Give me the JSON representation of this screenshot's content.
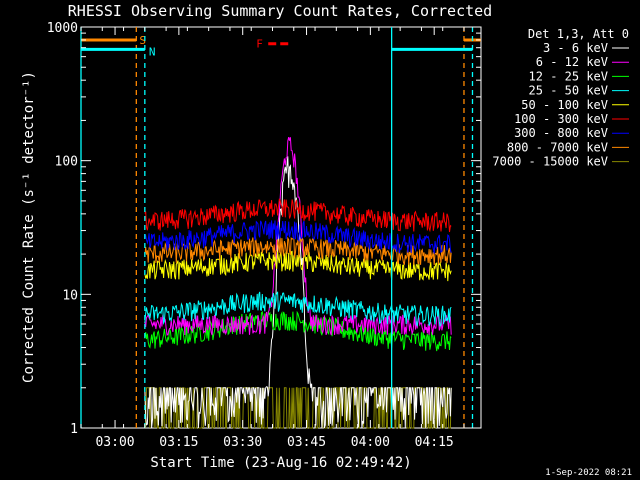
{
  "chart_data": {
    "type": "line",
    "title": "RHESSI Observing Summary Count Rates, Corrected",
    "xlabel": "Start Time (23-Aug-16 02:49:42)",
    "ylabel": "Corrected Count Rate (s⁻¹ detector⁻¹)",
    "y_scale": "log",
    "ylim": [
      1,
      1000
    ],
    "xlim": [
      "02:52",
      "04:26"
    ],
    "x_ticks": [
      "03:00",
      "03:15",
      "03:30",
      "03:45",
      "04:00",
      "04:15"
    ],
    "y_ticks": [
      "1",
      "10",
      "100",
      "1000"
    ],
    "legend_title": "Det 1,3, Att 0",
    "legend_position": "right",
    "timestamp": "1-Sep-2022 08:21",
    "series": [
      {
        "name": "3 - 6 keV",
        "color": "#ffffff",
        "start": "03:07",
        "end": "04:19",
        "base": 1.4,
        "peak": 90,
        "peak_time": "03:41"
      },
      {
        "name": "6 - 12 keV",
        "color": "#ff00ff",
        "start": "03:07",
        "end": "04:19",
        "base": 6.0,
        "peak": 130,
        "peak_time": "03:41"
      },
      {
        "name": "12 - 25 keV",
        "color": "#00ff00",
        "start": "03:07",
        "end": "04:19",
        "base": 4.5,
        "peak": 6.5,
        "peak_time": "03:38"
      },
      {
        "name": "25 - 50 keV",
        "color": "#00ffff",
        "start": "03:07",
        "end": "04:19",
        "base": 7.0,
        "peak": 9.0,
        "peak_time": "03:38"
      },
      {
        "name": "50 - 100 keV",
        "color": "#ffff00",
        "start": "03:07",
        "end": "04:19",
        "base": 15.0,
        "peak": 18.0,
        "peak_time": "03:38"
      },
      {
        "name": "100 - 300 keV",
        "color": "#ff0000",
        "start": "03:07",
        "end": "04:19",
        "base": 35.0,
        "peak": 44.0,
        "peak_time": "03:38"
      },
      {
        "name": "300 - 800 keV",
        "color": "#0000ff",
        "start": "03:07",
        "end": "04:19",
        "base": 24.0,
        "peak": 31.0,
        "peak_time": "03:38"
      },
      {
        "name": "800 - 7000 keV",
        "color": "#ff8800",
        "start": "03:07",
        "end": "04:19",
        "base": 20.0,
        "peak": 23.0,
        "peak_time": "03:38"
      },
      {
        "name": "7000 - 15000 keV",
        "color": "#888800",
        "start": "03:07",
        "end": "04:19",
        "base": 1.3,
        "peak": 1.5,
        "peak_time": "03:38"
      }
    ],
    "flags": [
      {
        "label": "S",
        "color": "#ff8800",
        "style": "dashed",
        "lines": [
          "03:05",
          "04:22"
        ],
        "level": 800,
        "segments": [
          [
            "02:52",
            "03:05"
          ],
          [
            "04:22",
            "04:26"
          ]
        ]
      },
      {
        "label": "N",
        "color": "#00ffff",
        "style": "solid",
        "lines": [
          "02:52",
          "04:05"
        ],
        "level": 680,
        "segments": [
          [
            "02:52",
            "03:07"
          ],
          [
            "04:05",
            "04:24"
          ]
        ]
      },
      {
        "label": "N",
        "color": "#00ffff",
        "style": "dashed",
        "lines": [
          "03:07",
          "04:24"
        ]
      },
      {
        "label": "F",
        "color": "#ff0000",
        "style": "solid",
        "level": 750,
        "segments": [
          [
            "03:36",
            "03:41"
          ]
        ]
      }
    ]
  }
}
